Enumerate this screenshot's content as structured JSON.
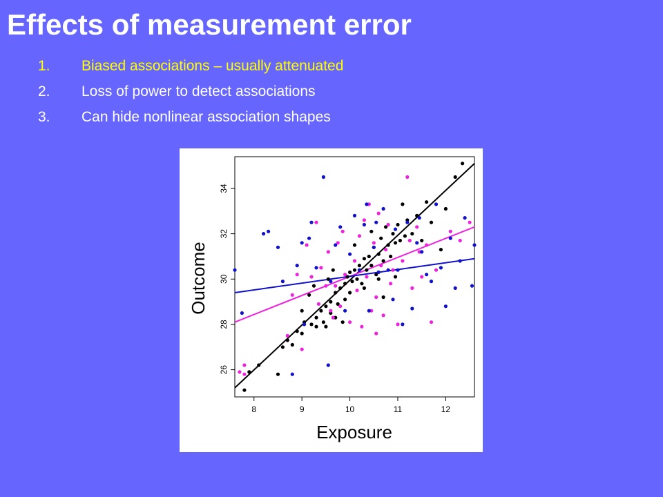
{
  "slide": {
    "title": "Effects of measurement error",
    "bullets": [
      {
        "num": "1.",
        "text": "Biased associations – usually attenuated"
      },
      {
        "num": "2.",
        "text": "Loss of power to detect associations"
      },
      {
        "num": "3.",
        "text": "Can hide nonlinear association shapes"
      }
    ]
  },
  "colors": {
    "background": "#6666ff",
    "title": "#ffffff",
    "highlight": "#ffff00",
    "black_series": "#000000",
    "magenta_series": "#ee22dd",
    "blue_series": "#1111cc"
  },
  "chart_data": {
    "type": "scatter",
    "xlabel": "Exposure",
    "ylabel": "Outcome",
    "xlim": [
      7.6,
      12.6
    ],
    "ylim": [
      24.8,
      35.4
    ],
    "x_ticks": [
      "8",
      "9",
      "10",
      "11",
      "12"
    ],
    "y_ticks": [
      "26",
      "28",
      "30",
      "32",
      "34"
    ],
    "grid": false,
    "legend": "none",
    "fit_lines": [
      {
        "color": "#000000",
        "x": [
          7.6,
          12.6
        ],
        "y": [
          25.2,
          35.1
        ]
      },
      {
        "color": "#ee22dd",
        "x": [
          7.6,
          12.6
        ],
        "y": [
          28.1,
          32.3
        ]
      },
      {
        "color": "#1111cc",
        "x": [
          7.6,
          12.6
        ],
        "y": [
          29.4,
          30.9
        ]
      }
    ],
    "series": [
      {
        "color": "#000000",
        "points": [
          [
            7.8,
            25.1
          ],
          [
            7.9,
            25.9
          ],
          [
            8.1,
            26.2
          ],
          [
            8.5,
            25.8
          ],
          [
            8.6,
            27.0
          ],
          [
            8.7,
            27.3
          ],
          [
            8.8,
            27.1
          ],
          [
            8.9,
            27.7
          ],
          [
            9.0,
            27.6
          ],
          [
            9.05,
            28.1
          ],
          [
            9.2,
            28.0
          ],
          [
            9.3,
            28.3
          ],
          [
            9.3,
            27.9
          ],
          [
            9.4,
            28.6
          ],
          [
            9.45,
            28.1
          ],
          [
            9.5,
            28.8
          ],
          [
            9.5,
            27.9
          ],
          [
            9.6,
            28.5
          ],
          [
            9.6,
            29.0
          ],
          [
            9.7,
            28.3
          ],
          [
            9.7,
            29.4
          ],
          [
            9.75,
            28.9
          ],
          [
            9.8,
            29.6
          ],
          [
            9.85,
            28.1
          ],
          [
            9.9,
            29.8
          ],
          [
            9.9,
            29.1
          ],
          [
            9.95,
            30.1
          ],
          [
            10.0,
            29.4
          ],
          [
            10.0,
            30.3
          ],
          [
            10.05,
            29.9
          ],
          [
            10.1,
            30.4
          ],
          [
            10.15,
            30.0
          ],
          [
            10.2,
            30.6
          ],
          [
            10.25,
            29.8
          ],
          [
            10.3,
            30.9
          ],
          [
            10.35,
            30.4
          ],
          [
            10.4,
            31.0
          ],
          [
            10.45,
            30.6
          ],
          [
            10.5,
            31.4
          ],
          [
            10.55,
            30.2
          ],
          [
            10.6,
            31.1
          ],
          [
            10.65,
            31.8
          ],
          [
            10.7,
            30.8
          ],
          [
            10.75,
            32.3
          ],
          [
            10.8,
            31.5
          ],
          [
            10.85,
            31.0
          ],
          [
            10.9,
            32.0
          ],
          [
            10.95,
            31.6
          ],
          [
            11.0,
            32.4
          ],
          [
            11.05,
            31.7
          ],
          [
            11.1,
            33.3
          ],
          [
            11.2,
            32.6
          ],
          [
            11.3,
            32.0
          ],
          [
            11.4,
            32.8
          ],
          [
            11.5,
            31.7
          ],
          [
            11.6,
            33.4
          ],
          [
            11.7,
            32.5
          ],
          [
            11.9,
            31.3
          ],
          [
            12.0,
            33.1
          ],
          [
            12.2,
            34.5
          ],
          [
            12.35,
            35.1
          ],
          [
            9.0,
            28.6
          ],
          [
            9.15,
            29.3
          ],
          [
            9.25,
            29.7
          ],
          [
            9.55,
            30.0
          ],
          [
            9.65,
            30.4
          ],
          [
            10.1,
            31.5
          ],
          [
            10.3,
            29.6
          ],
          [
            10.45,
            32.1
          ],
          [
            10.6,
            30.0
          ],
          [
            10.7,
            29.2
          ],
          [
            10.95,
            30.1
          ],
          [
            11.15,
            31.9
          ]
        ]
      },
      {
        "color": "#ee22dd",
        "points": [
          [
            7.7,
            25.9
          ],
          [
            7.8,
            25.8
          ],
          [
            7.8,
            26.2
          ],
          [
            8.7,
            27.5
          ],
          [
            8.8,
            29.3
          ],
          [
            8.9,
            30.2
          ],
          [
            9.0,
            26.9
          ],
          [
            9.1,
            31.5
          ],
          [
            9.2,
            30.1
          ],
          [
            9.3,
            32.5
          ],
          [
            9.4,
            30.5
          ],
          [
            9.5,
            29.7
          ],
          [
            9.55,
            31.2
          ],
          [
            9.6,
            28.6
          ],
          [
            9.7,
            29.7
          ],
          [
            9.75,
            31.6
          ],
          [
            9.8,
            28.8
          ],
          [
            9.85,
            32.1
          ],
          [
            9.9,
            30.2
          ],
          [
            10.0,
            28.1
          ],
          [
            10.1,
            30.8
          ],
          [
            10.15,
            29.5
          ],
          [
            10.2,
            31.9
          ],
          [
            10.3,
            32.6
          ],
          [
            10.35,
            30.1
          ],
          [
            10.4,
            33.3
          ],
          [
            10.45,
            28.6
          ],
          [
            10.5,
            31.6
          ],
          [
            10.55,
            29.2
          ],
          [
            10.6,
            32.9
          ],
          [
            10.65,
            30.6
          ],
          [
            10.7,
            28.4
          ],
          [
            10.75,
            31.3
          ],
          [
            10.8,
            32.4
          ],
          [
            10.85,
            29.8
          ],
          [
            10.9,
            30.4
          ],
          [
            11.0,
            28.0
          ],
          [
            11.1,
            30.8
          ],
          [
            11.2,
            34.5
          ],
          [
            11.25,
            31.7
          ],
          [
            11.3,
            29.6
          ],
          [
            11.4,
            32.3
          ],
          [
            11.5,
            30.1
          ],
          [
            11.6,
            31.5
          ],
          [
            11.7,
            28.1
          ],
          [
            11.8,
            30.4
          ],
          [
            12.1,
            32.1
          ],
          [
            12.3,
            31.7
          ],
          [
            12.5,
            32.5
          ],
          [
            9.35,
            28.9
          ],
          [
            9.65,
            28.3
          ],
          [
            10.25,
            27.9
          ],
          [
            10.55,
            27.6
          ],
          [
            11.45,
            31.2
          ]
        ]
      },
      {
        "color": "#1111cc",
        "points": [
          [
            7.6,
            30.4
          ],
          [
            7.75,
            28.5
          ],
          [
            8.2,
            32.0
          ],
          [
            8.5,
            31.4
          ],
          [
            8.6,
            29.9
          ],
          [
            8.8,
            25.8
          ],
          [
            8.9,
            30.6
          ],
          [
            9.0,
            31.6
          ],
          [
            9.05,
            28.0
          ],
          [
            9.2,
            32.5
          ],
          [
            9.3,
            30.5
          ],
          [
            9.45,
            34.5
          ],
          [
            9.55,
            26.2
          ],
          [
            9.6,
            29.9
          ],
          [
            9.7,
            31.5
          ],
          [
            9.8,
            32.3
          ],
          [
            9.9,
            28.6
          ],
          [
            10.0,
            31.1
          ],
          [
            10.1,
            32.8
          ],
          [
            10.2,
            30.4
          ],
          [
            10.3,
            32.4
          ],
          [
            10.4,
            28.6
          ],
          [
            10.5,
            31.4
          ],
          [
            10.55,
            32.5
          ],
          [
            10.6,
            30.3
          ],
          [
            10.7,
            33.1
          ],
          [
            10.8,
            30.4
          ],
          [
            10.9,
            29.1
          ],
          [
            11.0,
            30.4
          ],
          [
            11.1,
            28.0
          ],
          [
            11.2,
            32.5
          ],
          [
            11.3,
            28.7
          ],
          [
            11.4,
            31.6
          ],
          [
            11.5,
            31.2
          ],
          [
            11.6,
            30.2
          ],
          [
            11.7,
            29.9
          ],
          [
            11.8,
            33.3
          ],
          [
            11.9,
            30.5
          ],
          [
            12.0,
            28.8
          ],
          [
            12.1,
            31.8
          ],
          [
            12.2,
            29.6
          ],
          [
            12.3,
            30.8
          ],
          [
            12.4,
            32.7
          ],
          [
            12.55,
            29.7
          ],
          [
            12.6,
            31.5
          ],
          [
            8.3,
            32.1
          ],
          [
            9.15,
            31.8
          ],
          [
            10.35,
            33.3
          ],
          [
            10.95,
            32.2
          ],
          [
            11.45,
            32.7
          ]
        ]
      }
    ]
  }
}
